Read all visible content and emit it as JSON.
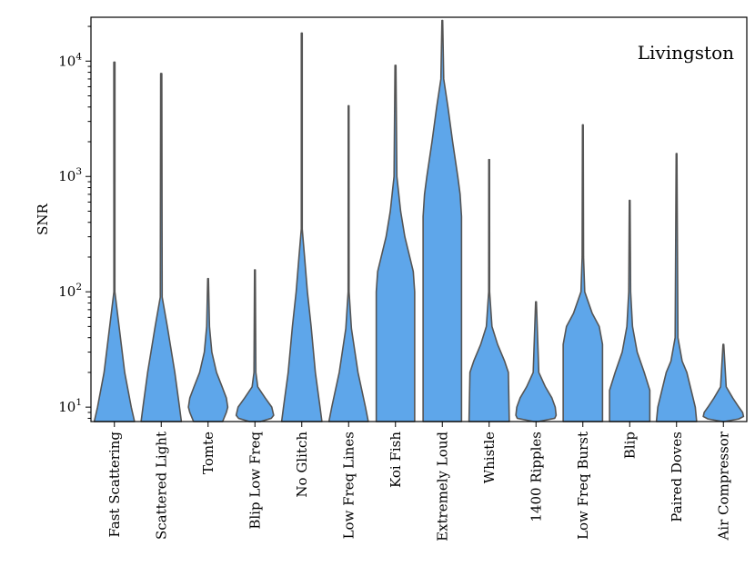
{
  "chart_data": {
    "type": "violin",
    "title": "",
    "annotation": "Livingston",
    "xlabel": "",
    "ylabel": "SNR",
    "yscale": "log",
    "ylim": [
      7.5,
      24000
    ],
    "yticks": [
      {
        "value": 10,
        "base": "10",
        "exp": "1"
      },
      {
        "value": 100,
        "base": "10",
        "exp": "2"
      },
      {
        "value": 1000,
        "base": "10",
        "exp": "3"
      },
      {
        "value": 10000,
        "base": "10",
        "exp": "4"
      }
    ],
    "colors": {
      "fill": "#5ea6ea",
      "edge": "#555555",
      "axis": "#000000"
    },
    "categories": [
      "Fast Scattering",
      "Scattered Light",
      "Tomte",
      "Blip Low Freq",
      "No Glitch",
      "Low Freq Lines",
      "Koi Fish",
      "Extremely Loud",
      "Whistle",
      "1400 Ripples",
      "Low Freq Burst",
      "Blip",
      "Paired Doves",
      "Air Compressor"
    ],
    "violins": [
      {
        "name": "Fast Scattering",
        "max": 9800,
        "profile": [
          [
            7.5,
            0.43
          ],
          [
            10,
            0.36
          ],
          [
            20,
            0.22
          ],
          [
            50,
            0.1
          ],
          [
            100,
            0.01
          ],
          [
            9800,
            0.012
          ]
        ]
      },
      {
        "name": "Scattered Light",
        "max": 7800,
        "profile": [
          [
            7.5,
            0.43
          ],
          [
            10,
            0.39
          ],
          [
            20,
            0.29
          ],
          [
            50,
            0.13
          ],
          [
            90,
            0.02
          ],
          [
            7800,
            0.012
          ]
        ]
      },
      {
        "name": "Tomte",
        "max": 130,
        "profile": [
          [
            7.5,
            0.31
          ],
          [
            9,
            0.39
          ],
          [
            10,
            0.42
          ],
          [
            12,
            0.39
          ],
          [
            15,
            0.3
          ],
          [
            20,
            0.18
          ],
          [
            30,
            0.08
          ],
          [
            50,
            0.03
          ],
          [
            130,
            0.008
          ]
        ]
      },
      {
        "name": "Blip Low Freq",
        "max": 155,
        "profile": [
          [
            7.5,
            0.12
          ],
          [
            8,
            0.35
          ],
          [
            8.5,
            0.4
          ],
          [
            10,
            0.36
          ],
          [
            12,
            0.22
          ],
          [
            15,
            0.06
          ],
          [
            20,
            0.02
          ],
          [
            155,
            0.008
          ]
        ]
      },
      {
        "name": "No Glitch",
        "max": 17500,
        "profile": [
          [
            7.5,
            0.43
          ],
          [
            10,
            0.39
          ],
          [
            20,
            0.29
          ],
          [
            50,
            0.2
          ],
          [
            100,
            0.12
          ],
          [
            200,
            0.06
          ],
          [
            350,
            0.01
          ],
          [
            17500,
            0.01
          ]
        ]
      },
      {
        "name": "Low Freq Lines",
        "max": 4100,
        "profile": [
          [
            7.5,
            0.42
          ],
          [
            10,
            0.36
          ],
          [
            20,
            0.2
          ],
          [
            48,
            0.06
          ],
          [
            100,
            0.01
          ],
          [
            4100,
            0.008
          ]
        ]
      },
      {
        "name": "Koi Fish",
        "max": 9200,
        "profile": [
          [
            7.5,
            0.41
          ],
          [
            100,
            0.41
          ],
          [
            150,
            0.38
          ],
          [
            300,
            0.2
          ],
          [
            500,
            0.11
          ],
          [
            1000,
            0.03
          ],
          [
            9200,
            0.01
          ]
        ]
      },
      {
        "name": "Extremely Loud",
        "max": 22500,
        "profile": [
          [
            7.5,
            0.41
          ],
          [
            450,
            0.41
          ],
          [
            700,
            0.38
          ],
          [
            1000,
            0.33
          ],
          [
            2000,
            0.22
          ],
          [
            4000,
            0.12
          ],
          [
            7000,
            0.03
          ],
          [
            22500,
            0.008
          ]
        ]
      },
      {
        "name": "Whistle",
        "max": 1400,
        "profile": [
          [
            7.5,
            0.43
          ],
          [
            20,
            0.41
          ],
          [
            25,
            0.33
          ],
          [
            35,
            0.18
          ],
          [
            50,
            0.06
          ],
          [
            100,
            0.01
          ],
          [
            1400,
            0.008
          ]
        ]
      },
      {
        "name": "1400 Ripples",
        "max": 82,
        "profile": [
          [
            7.5,
            0.05
          ],
          [
            8,
            0.4
          ],
          [
            8.5,
            0.43
          ],
          [
            10,
            0.41
          ],
          [
            12,
            0.34
          ],
          [
            15,
            0.2
          ],
          [
            20,
            0.06
          ],
          [
            82,
            0.008
          ]
        ]
      },
      {
        "name": "Low Freq Burst",
        "max": 2800,
        "profile": [
          [
            7.5,
            0.42
          ],
          [
            35,
            0.42
          ],
          [
            50,
            0.35
          ],
          [
            65,
            0.2
          ],
          [
            100,
            0.04
          ],
          [
            200,
            0.015
          ],
          [
            2800,
            0.008
          ]
        ]
      },
      {
        "name": "Blip",
        "max": 620,
        "profile": [
          [
            7.5,
            0.43
          ],
          [
            14,
            0.43
          ],
          [
            20,
            0.31
          ],
          [
            30,
            0.16
          ],
          [
            50,
            0.06
          ],
          [
            100,
            0.02
          ],
          [
            620,
            0.008
          ]
        ]
      },
      {
        "name": "Paired Doves",
        "max": 1580,
        "profile": [
          [
            7.5,
            0.43
          ],
          [
            10,
            0.4
          ],
          [
            20,
            0.22
          ],
          [
            25,
            0.12
          ],
          [
            40,
            0.03
          ],
          [
            1580,
            0.008
          ]
        ]
      },
      {
        "name": "Air Compressor",
        "max": 35,
        "profile": [
          [
            7.5,
            0.02
          ],
          [
            7.9,
            0.33
          ],
          [
            8.3,
            0.43
          ],
          [
            9,
            0.41
          ],
          [
            10,
            0.33
          ],
          [
            12,
            0.2
          ],
          [
            15,
            0.06
          ],
          [
            35,
            0.008
          ]
        ]
      }
    ]
  }
}
